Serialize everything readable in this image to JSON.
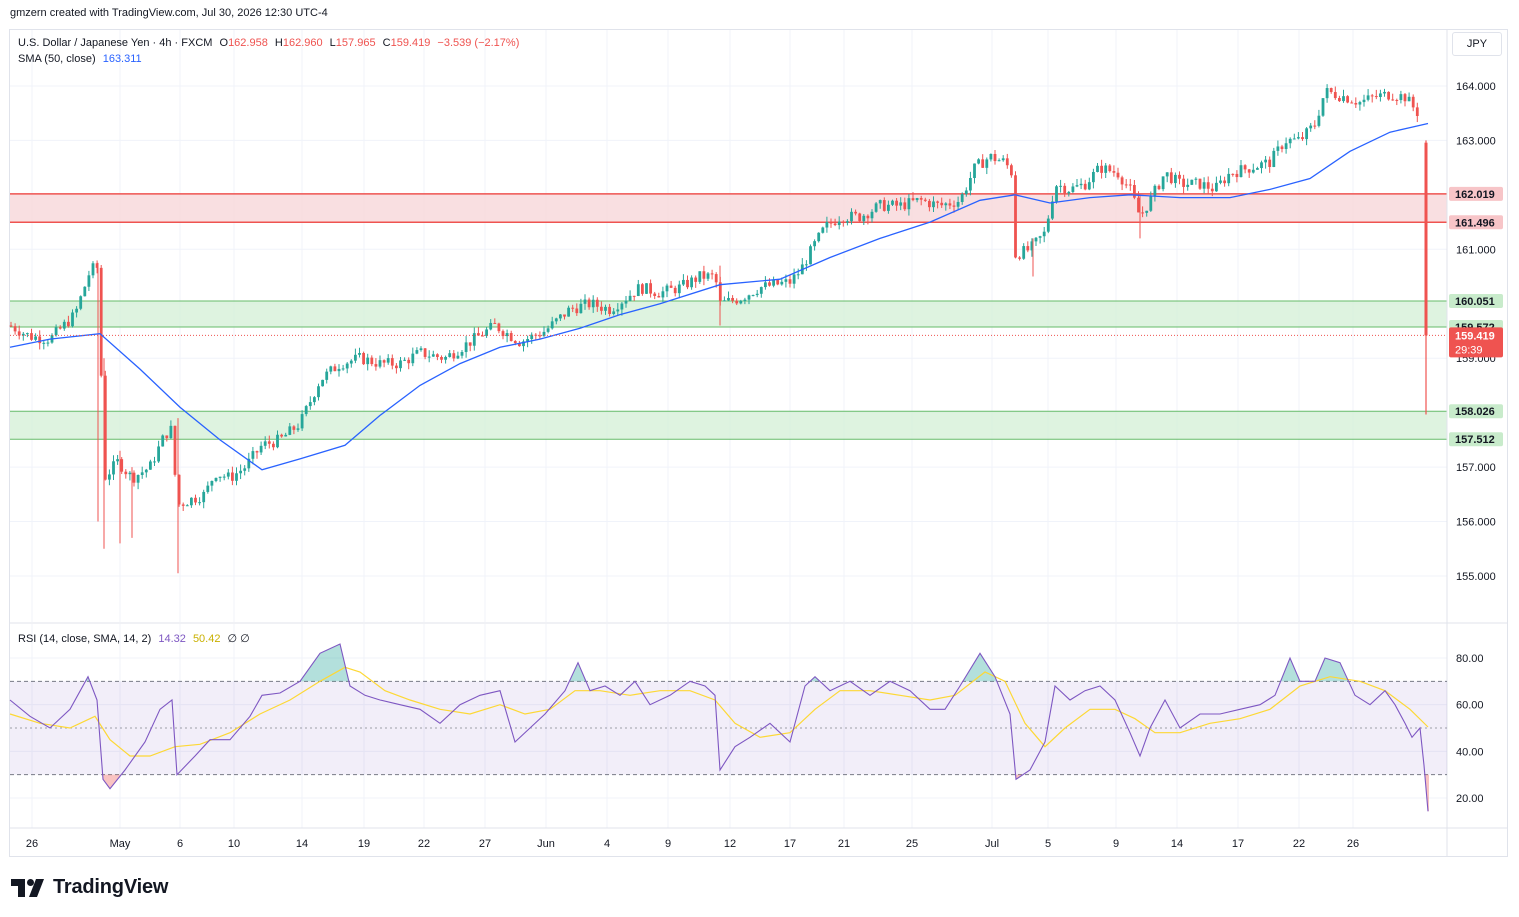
{
  "header": {
    "caption": "gmzern created with TradingView.com, Jul 30, 2026 12:30 UTC-4",
    "symbol": "U.S. Dollar / Japanese Yen · 4h · FXCM",
    "open_label": "O",
    "open": "162.958",
    "high_label": "H",
    "high": "162.960",
    "low_label": "L",
    "low": "157.965",
    "close_label": "C",
    "close": "159.419",
    "change": "−3.539 (−2.17%)",
    "sma_label": "SMA (50, close)",
    "sma_value": "163.311",
    "rsi_label": "RSI (14, close, SMA, 14, 2)",
    "rsi_value": "14.32",
    "rsi_ma_value": "50.42",
    "rsi_extra": "∅  ∅"
  },
  "currency_button": "JPY",
  "footer": {
    "logo_text": "TradingView"
  },
  "colors": {
    "up": "#26a69a",
    "down": "#ef5350",
    "sma": "#2962ff",
    "rsi": "#7e57c2",
    "rsi_ma": "#fdd835",
    "resistance_zone": "#f8d7da",
    "support_zone": "#d6f0d8",
    "zone_line_red": "#ef5350",
    "zone_line_green": "#66bb6a"
  },
  "chart_data": {
    "type": "candlestick",
    "price_axis": {
      "ticks": [
        155.0,
        156.0,
        157.0,
        158.0,
        159.0,
        160.0,
        161.0,
        163.0,
        164.0
      ],
      "tick_labels": [
        "155.000",
        "156.000",
        "157.000",
        "158.000",
        "159.000",
        "160.000",
        "161.000",
        "163.000",
        "164.000"
      ],
      "ylim": [
        154.2,
        165.0
      ]
    },
    "x_axis": {
      "labels": [
        "26",
        "May",
        "6",
        "10",
        "14",
        "19",
        "22",
        "27",
        "Jun",
        "4",
        "9",
        "12",
        "17",
        "21",
        "25",
        "Jul",
        "5",
        "9",
        "14",
        "17",
        "22",
        "26"
      ]
    },
    "zones": [
      {
        "kind": "resistance",
        "top": 162.019,
        "bottom": 161.496,
        "top_label": "162.019",
        "bottom_label": "161.496"
      },
      {
        "kind": "support",
        "top": 160.051,
        "bottom": 159.572,
        "top_label": "160.051",
        "bottom_label": "159.572"
      },
      {
        "kind": "support",
        "top": 158.026,
        "bottom": 157.512,
        "top_label": "158.026",
        "bottom_label": "157.512"
      }
    ],
    "last_price": {
      "value": 159.419,
      "label": "159.419",
      "countdown": "29:39"
    },
    "series": [
      {
        "name": "USD/JPY close (approx.)",
        "keypoints": [
          [
            0,
            159.7
          ],
          [
            30,
            159.4
          ],
          [
            50,
            159.35
          ],
          [
            75,
            159.8
          ],
          [
            90,
            160.6
          ],
          [
            97,
            160.7
          ],
          [
            100,
            159.5
          ],
          [
            104,
            156.8
          ],
          [
            118,
            157.1
          ],
          [
            132,
            156.8
          ],
          [
            150,
            157.0
          ],
          [
            165,
            157.6
          ],
          [
            172,
            157.7
          ],
          [
            177,
            156.3
          ],
          [
            190,
            156.4
          ],
          [
            205,
            156.5
          ],
          [
            215,
            156.9
          ],
          [
            230,
            156.8
          ],
          [
            245,
            157.0
          ],
          [
            262,
            157.4
          ],
          [
            280,
            157.5
          ],
          [
            300,
            157.8
          ],
          [
            320,
            158.6
          ],
          [
            340,
            158.9
          ],
          [
            360,
            159.0
          ],
          [
            380,
            158.9
          ],
          [
            400,
            158.9
          ],
          [
            420,
            159.1
          ],
          [
            445,
            159.0
          ],
          [
            470,
            159.3
          ],
          [
            495,
            159.6
          ],
          [
            520,
            159.3
          ],
          [
            545,
            159.5
          ],
          [
            570,
            159.9
          ],
          [
            590,
            160.0
          ],
          [
            610,
            159.9
          ],
          [
            625,
            160.1
          ],
          [
            640,
            160.3
          ],
          [
            660,
            160.2
          ],
          [
            680,
            160.3
          ],
          [
            700,
            160.5
          ],
          [
            715,
            160.5
          ],
          [
            720,
            160.0
          ],
          [
            740,
            160.1
          ],
          [
            760,
            160.3
          ],
          [
            790,
            160.4
          ],
          [
            800,
            160.6
          ],
          [
            815,
            161.1
          ],
          [
            825,
            161.4
          ],
          [
            840,
            161.6
          ],
          [
            860,
            161.6
          ],
          [
            880,
            161.8
          ],
          [
            900,
            161.8
          ],
          [
            920,
            161.9
          ],
          [
            940,
            161.8
          ],
          [
            960,
            161.9
          ],
          [
            975,
            162.5
          ],
          [
            990,
            162.7
          ],
          [
            1005,
            162.6
          ],
          [
            1012,
            162.4
          ],
          [
            1015,
            160.9
          ],
          [
            1030,
            161.0
          ],
          [
            1045,
            161.3
          ],
          [
            1055,
            162.2
          ],
          [
            1070,
            162.1
          ],
          [
            1085,
            162.2
          ],
          [
            1100,
            162.5
          ],
          [
            1118,
            162.4
          ],
          [
            1130,
            162.1
          ],
          [
            1140,
            161.6
          ],
          [
            1150,
            161.9
          ],
          [
            1165,
            162.4
          ],
          [
            1180,
            162.2
          ],
          [
            1200,
            162.2
          ],
          [
            1215,
            162.1
          ],
          [
            1230,
            162.4
          ],
          [
            1250,
            162.5
          ],
          [
            1270,
            162.6
          ],
          [
            1285,
            163.0
          ],
          [
            1300,
            163.0
          ],
          [
            1315,
            163.3
          ],
          [
            1325,
            163.9
          ],
          [
            1345,
            163.8
          ],
          [
            1360,
            163.7
          ],
          [
            1375,
            163.8
          ],
          [
            1390,
            163.85
          ],
          [
            1405,
            163.8
          ],
          [
            1418,
            163.5
          ],
          [
            1422,
            162.9
          ],
          [
            1424,
            162.3
          ],
          [
            1426,
            159.0
          ],
          [
            1428,
            159.419
          ]
        ]
      },
      {
        "name": "SMA (50, close)",
        "keypoints": [
          [
            10,
            159.2
          ],
          [
            50,
            159.35
          ],
          [
            100,
            159.45
          ],
          [
            140,
            158.8
          ],
          [
            180,
            158.1
          ],
          [
            220,
            157.5
          ],
          [
            262,
            156.95
          ],
          [
            300,
            157.15
          ],
          [
            345,
            157.4
          ],
          [
            380,
            157.95
          ],
          [
            420,
            158.5
          ],
          [
            460,
            158.9
          ],
          [
            500,
            159.2
          ],
          [
            540,
            159.35
          ],
          [
            580,
            159.55
          ],
          [
            620,
            159.8
          ],
          [
            660,
            160.0
          ],
          [
            720,
            160.35
          ],
          [
            780,
            160.45
          ],
          [
            830,
            160.85
          ],
          [
            880,
            161.2
          ],
          [
            930,
            161.5
          ],
          [
            980,
            161.9
          ],
          [
            1015,
            162.0
          ],
          [
            1050,
            161.85
          ],
          [
            1090,
            161.95
          ],
          [
            1130,
            162.0
          ],
          [
            1180,
            161.95
          ],
          [
            1230,
            161.95
          ],
          [
            1270,
            162.1
          ],
          [
            1310,
            162.3
          ],
          [
            1350,
            162.8
          ],
          [
            1390,
            163.15
          ],
          [
            1428,
            163.311
          ]
        ]
      }
    ],
    "rsi": {
      "axis_ticks": [
        20.0,
        40.0,
        60.0,
        80.0
      ],
      "tick_labels": [
        "20.00",
        "40.00",
        "60.00",
        "80.00"
      ],
      "band": [
        30,
        70
      ],
      "midline": 50,
      "ylim": [
        10,
        90
      ],
      "rsi_points": [
        [
          10,
          62
        ],
        [
          30,
          55
        ],
        [
          50,
          50
        ],
        [
          70,
          58
        ],
        [
          88,
          72
        ],
        [
          97,
          62
        ],
        [
          103,
          28
        ],
        [
          110,
          24
        ],
        [
          125,
          32
        ],
        [
          145,
          44
        ],
        [
          160,
          58
        ],
        [
          172,
          62
        ],
        [
          177,
          30
        ],
        [
          195,
          38
        ],
        [
          210,
          45
        ],
        [
          230,
          45
        ],
        [
          250,
          55
        ],
        [
          262,
          64
        ],
        [
          280,
          65
        ],
        [
          300,
          70
        ],
        [
          320,
          82
        ],
        [
          340,
          86
        ],
        [
          350,
          68
        ],
        [
          365,
          64
        ],
        [
          380,
          62
        ],
        [
          400,
          60
        ],
        [
          420,
          58
        ],
        [
          440,
          52
        ],
        [
          460,
          60
        ],
        [
          480,
          64
        ],
        [
          500,
          66
        ],
        [
          515,
          44
        ],
        [
          530,
          50
        ],
        [
          545,
          56
        ],
        [
          565,
          66
        ],
        [
          578,
          78
        ],
        [
          590,
          66
        ],
        [
          605,
          68
        ],
        [
          620,
          64
        ],
        [
          635,
          70
        ],
        [
          650,
          60
        ],
        [
          670,
          64
        ],
        [
          690,
          70
        ],
        [
          705,
          68
        ],
        [
          715,
          64
        ],
        [
          720,
          32
        ],
        [
          735,
          42
        ],
        [
          750,
          46
        ],
        [
          770,
          52
        ],
        [
          790,
          44
        ],
        [
          805,
          68
        ],
        [
          815,
          72
        ],
        [
          830,
          66
        ],
        [
          850,
          70
        ],
        [
          870,
          64
        ],
        [
          890,
          70
        ],
        [
          910,
          66
        ],
        [
          930,
          58
        ],
        [
          945,
          58
        ],
        [
          960,
          68
        ],
        [
          980,
          82
        ],
        [
          995,
          72
        ],
        [
          1010,
          56
        ],
        [
          1016,
          28
        ],
        [
          1030,
          32
        ],
        [
          1045,
          44
        ],
        [
          1055,
          68
        ],
        [
          1070,
          62
        ],
        [
          1085,
          66
        ],
        [
          1100,
          68
        ],
        [
          1115,
          62
        ],
        [
          1130,
          48
        ],
        [
          1140,
          38
        ],
        [
          1150,
          50
        ],
        [
          1165,
          62
        ],
        [
          1180,
          50
        ],
        [
          1200,
          56
        ],
        [
          1220,
          56
        ],
        [
          1240,
          58
        ],
        [
          1260,
          60
        ],
        [
          1275,
          64
        ],
        [
          1290,
          80
        ],
        [
          1300,
          70
        ],
        [
          1315,
          70
        ],
        [
          1325,
          80
        ],
        [
          1340,
          78
        ],
        [
          1355,
          64
        ],
        [
          1370,
          60
        ],
        [
          1385,
          66
        ],
        [
          1395,
          60
        ],
        [
          1405,
          52
        ],
        [
          1412,
          46
        ],
        [
          1420,
          50
        ],
        [
          1424,
          34
        ],
        [
          1428,
          14.32
        ]
      ],
      "ma_points": [
        [
          10,
          56
        ],
        [
          40,
          52
        ],
        [
          70,
          50
        ],
        [
          95,
          55
        ],
        [
          110,
          45
        ],
        [
          130,
          38
        ],
        [
          150,
          38
        ],
        [
          175,
          42
        ],
        [
          200,
          43
        ],
        [
          230,
          48
        ],
        [
          260,
          56
        ],
        [
          290,
          62
        ],
        [
          320,
          70
        ],
        [
          345,
          76
        ],
        [
          360,
          74
        ],
        [
          385,
          66
        ],
        [
          410,
          62
        ],
        [
          440,
          58
        ],
        [
          470,
          56
        ],
        [
          500,
          60
        ],
        [
          525,
          56
        ],
        [
          550,
          58
        ],
        [
          575,
          66
        ],
        [
          600,
          66
        ],
        [
          630,
          64
        ],
        [
          660,
          66
        ],
        [
          690,
          66
        ],
        [
          715,
          62
        ],
        [
          735,
          52
        ],
        [
          760,
          46
        ],
        [
          790,
          48
        ],
        [
          815,
          58
        ],
        [
          840,
          66
        ],
        [
          870,
          66
        ],
        [
          900,
          64
        ],
        [
          930,
          62
        ],
        [
          955,
          64
        ],
        [
          985,
          74
        ],
        [
          1005,
          70
        ],
        [
          1025,
          52
        ],
        [
          1045,
          42
        ],
        [
          1065,
          50
        ],
        [
          1090,
          58
        ],
        [
          1115,
          58
        ],
        [
          1135,
          54
        ],
        [
          1155,
          48
        ],
        [
          1180,
          48
        ],
        [
          1210,
          52
        ],
        [
          1240,
          54
        ],
        [
          1270,
          58
        ],
        [
          1300,
          68
        ],
        [
          1330,
          72
        ],
        [
          1360,
          70
        ],
        [
          1385,
          66
        ],
        [
          1410,
          58
        ],
        [
          1428,
          50.42
        ]
      ]
    }
  }
}
